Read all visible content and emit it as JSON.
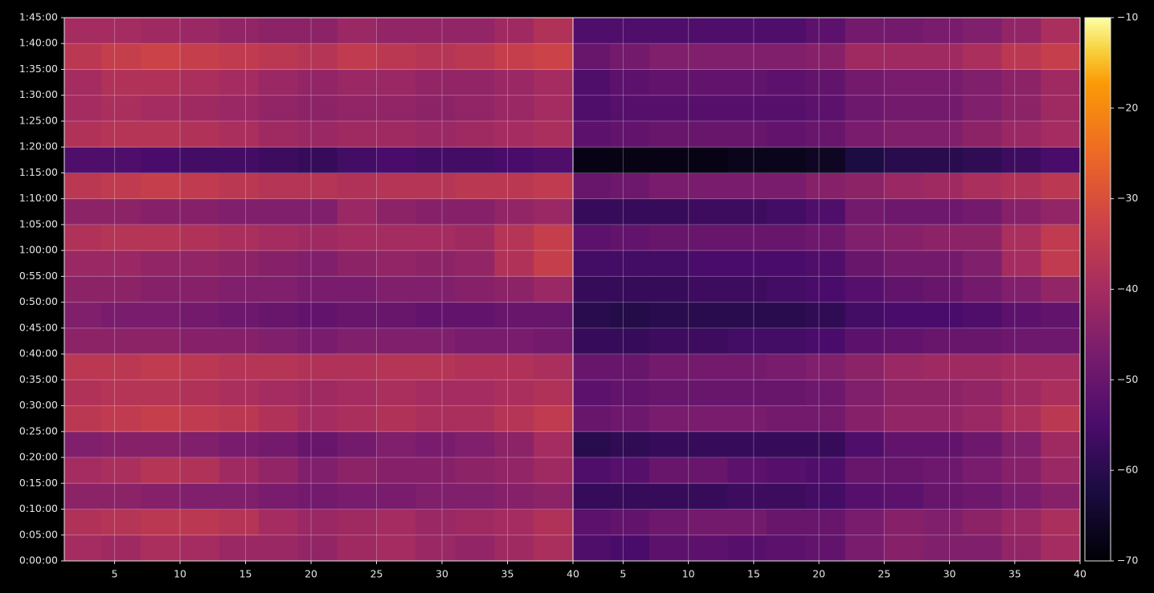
{
  "chart_data": {
    "type": "heatmap",
    "x": [
      2.5,
      5.5,
      8.5,
      11.5,
      14.5,
      17.5,
      20.5,
      23.5,
      26.5,
      29.5,
      32.5,
      35.5,
      38.5
    ],
    "y": [
      150,
      450,
      750,
      1050,
      1350,
      1650,
      1950,
      2250,
      2550,
      2850,
      3150,
      3450,
      3750,
      4050,
      4350,
      4650,
      4950,
      5250,
      5550,
      5850,
      6150
    ],
    "xlim": [
      1.16,
      40
    ],
    "xticks": [
      5,
      10,
      15,
      20,
      25,
      30,
      35,
      40
    ],
    "ylim": [
      0,
      6300
    ],
    "yticks": [
      {
        "value": 0,
        "label": "0:00:00"
      },
      {
        "value": 300,
        "label": "0:05:00"
      },
      {
        "value": 600,
        "label": "0:10:00"
      },
      {
        "value": 900,
        "label": "0:15:00"
      },
      {
        "value": 1200,
        "label": "0:20:00"
      },
      {
        "value": 1500,
        "label": "0:25:00"
      },
      {
        "value": 1800,
        "label": "0:30:00"
      },
      {
        "value": 2100,
        "label": "0:35:00"
      },
      {
        "value": 2400,
        "label": "0:40:00"
      },
      {
        "value": 2700,
        "label": "0:45:00"
      },
      {
        "value": 3000,
        "label": "0:50:00"
      },
      {
        "value": 3300,
        "label": "0:55:00"
      },
      {
        "value": 3600,
        "label": "1:00:00"
      },
      {
        "value": 3900,
        "label": "1:05:00"
      },
      {
        "value": 4200,
        "label": "1:10:00"
      },
      {
        "value": 4500,
        "label": "1:15:00"
      },
      {
        "value": 4800,
        "label": "1:20:00"
      },
      {
        "value": 5100,
        "label": "1:25:00"
      },
      {
        "value": 5400,
        "label": "1:30:00"
      },
      {
        "value": 5700,
        "label": "1:35:00"
      },
      {
        "value": 6000,
        "label": "1:40:00"
      },
      {
        "value": 6300,
        "label": "1:45:00"
      }
    ],
    "grid": true,
    "colormap": "inferno",
    "zlim": [
      -70,
      -10
    ],
    "zticks": [
      {
        "value": -70,
        "label": "−70"
      },
      {
        "value": -60,
        "label": "−60"
      },
      {
        "value": -50,
        "label": "−50"
      },
      {
        "value": -40,
        "label": "−40"
      },
      {
        "value": -30,
        "label": "−30"
      },
      {
        "value": -20,
        "label": "−20"
      },
      {
        "value": -10,
        "label": "−10"
      }
    ],
    "panels": [
      {
        "values": [
          [
            -40,
            -41,
            -39,
            -40,
            -42,
            -42,
            -43,
            -41,
            -40,
            -42,
            -43,
            -41,
            -39
          ],
          [
            -38,
            -37,
            -36,
            -36,
            -37,
            -40,
            -42,
            -41,
            -40,
            -42,
            -41,
            -40,
            -38
          ],
          [
            -44,
            -44,
            -45,
            -46,
            -46,
            -47,
            -48,
            -47,
            -47,
            -46,
            -46,
            -45,
            -44
          ],
          [
            -40,
            -39,
            -37,
            -38,
            -41,
            -43,
            -46,
            -44,
            -45,
            -45,
            -44,
            -43,
            -41
          ],
          [
            -46,
            -45,
            -45,
            -46,
            -47,
            -48,
            -50,
            -48,
            -46,
            -47,
            -46,
            -44,
            -40
          ],
          [
            -36,
            -35,
            -34,
            -35,
            -36,
            -38,
            -40,
            -39,
            -38,
            -39,
            -39,
            -37,
            -35
          ],
          [
            -38,
            -37,
            -37,
            -38,
            -39,
            -40,
            -41,
            -40,
            -39,
            -40,
            -40,
            -39,
            -38
          ],
          [
            -36,
            -36,
            -35,
            -36,
            -37,
            -37,
            -38,
            -38,
            -37,
            -37,
            -38,
            -38,
            -39
          ],
          [
            -44,
            -44,
            -44,
            -45,
            -45,
            -46,
            -47,
            -46,
            -46,
            -46,
            -47,
            -47,
            -48
          ],
          [
            -46,
            -47,
            -47,
            -48,
            -49,
            -50,
            -51,
            -50,
            -50,
            -51,
            -51,
            -50,
            -50
          ],
          [
            -44,
            -44,
            -45,
            -45,
            -46,
            -46,
            -47,
            -47,
            -46,
            -46,
            -45,
            -44,
            -42
          ],
          [
            -42,
            -42,
            -43,
            -43,
            -44,
            -45,
            -46,
            -44,
            -43,
            -44,
            -43,
            -38,
            -34
          ],
          [
            -38,
            -37,
            -37,
            -38,
            -39,
            -40,
            -41,
            -40,
            -40,
            -40,
            -41,
            -37,
            -34
          ],
          [
            -44,
            -44,
            -45,
            -45,
            -46,
            -46,
            -46,
            -42,
            -44,
            -45,
            -45,
            -43,
            -42
          ],
          [
            -36,
            -35,
            -34,
            -35,
            -36,
            -37,
            -37,
            -38,
            -37,
            -37,
            -36,
            -36,
            -35
          ],
          [
            -54,
            -54,
            -55,
            -56,
            -56,
            -57,
            -58,
            -56,
            -55,
            -56,
            -56,
            -55,
            -54
          ],
          [
            -38,
            -37,
            -37,
            -38,
            -39,
            -41,
            -42,
            -41,
            -41,
            -42,
            -41,
            -40,
            -39
          ],
          [
            -40,
            -39,
            -40,
            -41,
            -42,
            -43,
            -44,
            -43,
            -43,
            -44,
            -43,
            -42,
            -40
          ],
          [
            -40,
            -38,
            -38,
            -39,
            -40,
            -42,
            -43,
            -42,
            -42,
            -43,
            -43,
            -42,
            -40
          ],
          [
            -36,
            -34,
            -33,
            -34,
            -35,
            -36,
            -37,
            -35,
            -36,
            -37,
            -36,
            -34,
            -33
          ],
          [
            -40,
            -40,
            -41,
            -42,
            -43,
            -44,
            -44,
            -42,
            -43,
            -43,
            -43,
            -41,
            -38
          ]
        ]
      },
      {
        "values": [
          [
            -54,
            -55,
            -52,
            -52,
            -53,
            -52,
            -51,
            -47,
            -45,
            -46,
            -46,
            -43,
            -40
          ],
          [
            -52,
            -51,
            -49,
            -48,
            -48,
            -50,
            -50,
            -47,
            -45,
            -46,
            -44,
            -42,
            -39
          ],
          [
            -58,
            -58,
            -58,
            -58,
            -57,
            -57,
            -56,
            -53,
            -52,
            -50,
            -49,
            -47,
            -45
          ],
          [
            -54,
            -53,
            -50,
            -50,
            -52,
            -53,
            -54,
            -50,
            -50,
            -49,
            -47,
            -45,
            -42
          ],
          [
            -60,
            -59,
            -58,
            -58,
            -58,
            -58,
            -58,
            -54,
            -51,
            -51,
            -49,
            -46,
            -41
          ],
          [
            -50,
            -49,
            -47,
            -47,
            -47,
            -48,
            -48,
            -45,
            -43,
            -43,
            -42,
            -39,
            -36
          ],
          [
            -52,
            -51,
            -50,
            -50,
            -50,
            -50,
            -49,
            -46,
            -44,
            -44,
            -43,
            -41,
            -39
          ],
          [
            -50,
            -50,
            -48,
            -48,
            -48,
            -47,
            -46,
            -44,
            -42,
            -41,
            -41,
            -40,
            -40
          ],
          [
            -58,
            -58,
            -57,
            -57,
            -56,
            -56,
            -55,
            -52,
            -51,
            -50,
            -50,
            -49,
            -49
          ],
          [
            -60,
            -61,
            -60,
            -60,
            -60,
            -60,
            -59,
            -56,
            -55,
            -55,
            -54,
            -52,
            -51
          ],
          [
            -58,
            -58,
            -58,
            -57,
            -57,
            -56,
            -55,
            -53,
            -51,
            -50,
            -48,
            -46,
            -43
          ],
          [
            -56,
            -56,
            -56,
            -55,
            -55,
            -55,
            -54,
            -50,
            -48,
            -48,
            -46,
            -40,
            -35
          ],
          [
            -52,
            -51,
            -50,
            -50,
            -50,
            -50,
            -49,
            -46,
            -45,
            -44,
            -44,
            -39,
            -35
          ],
          [
            -58,
            -58,
            -58,
            -57,
            -57,
            -56,
            -54,
            -48,
            -49,
            -49,
            -48,
            -45,
            -43
          ],
          [
            -50,
            -49,
            -47,
            -47,
            -47,
            -47,
            -45,
            -44,
            -42,
            -41,
            -39,
            -38,
            -36
          ],
          [
            -68,
            -68,
            -68,
            -68,
            -67,
            -67,
            -66,
            -62,
            -60,
            -60,
            -59,
            -57,
            -55
          ],
          [
            -52,
            -51,
            -50,
            -50,
            -50,
            -51,
            -50,
            -47,
            -46,
            -46,
            -44,
            -42,
            -40
          ],
          [
            -54,
            -53,
            -53,
            -53,
            -53,
            -53,
            -52,
            -49,
            -48,
            -48,
            -46,
            -44,
            -41
          ],
          [
            -54,
            -52,
            -51,
            -51,
            -51,
            -52,
            -51,
            -48,
            -47,
            -47,
            -46,
            -44,
            -41
          ],
          [
            -50,
            -48,
            -46,
            -46,
            -46,
            -46,
            -45,
            -41,
            -41,
            -41,
            -39,
            -36,
            -34
          ],
          [
            -54,
            -54,
            -54,
            -54,
            -54,
            -54,
            -52,
            -48,
            -48,
            -47,
            -46,
            -43,
            -39
          ]
        ]
      }
    ]
  }
}
